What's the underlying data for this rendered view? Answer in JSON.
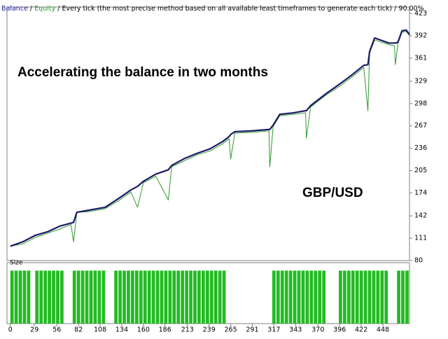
{
  "chart_data": {
    "type": "line",
    "separator": "/",
    "subtitle": "Every tick (the most precise method based on all available least timeframes to generate each tick)",
    "quality": "90.00%",
    "annotations": [
      "Accelerating the balance in two months",
      "GBP/USD"
    ],
    "x": [
      0,
      15,
      30,
      45,
      60,
      73,
      76,
      80,
      95,
      114,
      130,
      145,
      153,
      160,
      175,
      190,
      194,
      210,
      225,
      240,
      255,
      263,
      265,
      270,
      290,
      311,
      312,
      316,
      324,
      340,
      355,
      356,
      361,
      380,
      396,
      410,
      425,
      430,
      432,
      438,
      455,
      462,
      463,
      466,
      471,
      476,
      480
    ],
    "series": [
      {
        "name": "Balance",
        "color": "#1a1a66",
        "values": [
          100,
          106,
          115,
          120,
          128,
          132,
          133,
          147,
          150,
          154,
          166,
          178,
          183,
          190,
          200,
          206,
          212,
          222,
          229,
          235,
          245,
          252,
          255,
          259,
          260,
          262,
          262,
          268,
          283,
          285,
          288,
          288,
          295,
          312,
          325,
          337,
          351,
          352,
          370,
          389,
          382,
          382,
          382,
          383,
          399,
          400,
          394
        ]
      },
      {
        "name": "Equity",
        "color": "#2e9a2e",
        "values": [
          100,
          103,
          112,
          118,
          124,
          130,
          106,
          147,
          148,
          152,
          163,
          175,
          154,
          188,
          197,
          164,
          210,
          219,
          227,
          232,
          242,
          249,
          221,
          257,
          258,
          260,
          210,
          266,
          281,
          283,
          285,
          250,
          293,
          310,
          322,
          334,
          348,
          288,
          368,
          386,
          380,
          378,
          352,
          381,
          397,
          398,
          392
        ]
      }
    ],
    "xlim": [
      -4,
      480
    ],
    "ylim": [
      80,
      432
    ],
    "yticks": [
      80,
      111,
      142,
      174,
      205,
      236,
      267,
      298,
      329,
      361,
      392,
      423
    ],
    "xticks": [
      0,
      29,
      56,
      82,
      108,
      134,
      160,
      186,
      213,
      239,
      265,
      291,
      317,
      343,
      370,
      396,
      422,
      448
    ],
    "size_panel": {
      "title": "Size",
      "color": "#22bb22",
      "bucket": 5,
      "ylim": [
        0,
        1.15
      ],
      "values": [
        1,
        1,
        1,
        1,
        1,
        0,
        1,
        1,
        1,
        1,
        1,
        1,
        1,
        0,
        0,
        1,
        1,
        1,
        1,
        1,
        1,
        1,
        1,
        0,
        0,
        1,
        1,
        1,
        1,
        1,
        1,
        1,
        1,
        1,
        1,
        1,
        1,
        1,
        1,
        1,
        1,
        1,
        1,
        1,
        1,
        1,
        1,
        1,
        1,
        1,
        1,
        1,
        0,
        0,
        0,
        0,
        0,
        0,
        0,
        0,
        0,
        0,
        0,
        1,
        1,
        1,
        1,
        1,
        1,
        1,
        1,
        1,
        1,
        1,
        1,
        1,
        0,
        0,
        0,
        1,
        1,
        1,
        1,
        1,
        1,
        1,
        1,
        1,
        1,
        1,
        1,
        0,
        0,
        1,
        1,
        1
      ]
    }
  }
}
